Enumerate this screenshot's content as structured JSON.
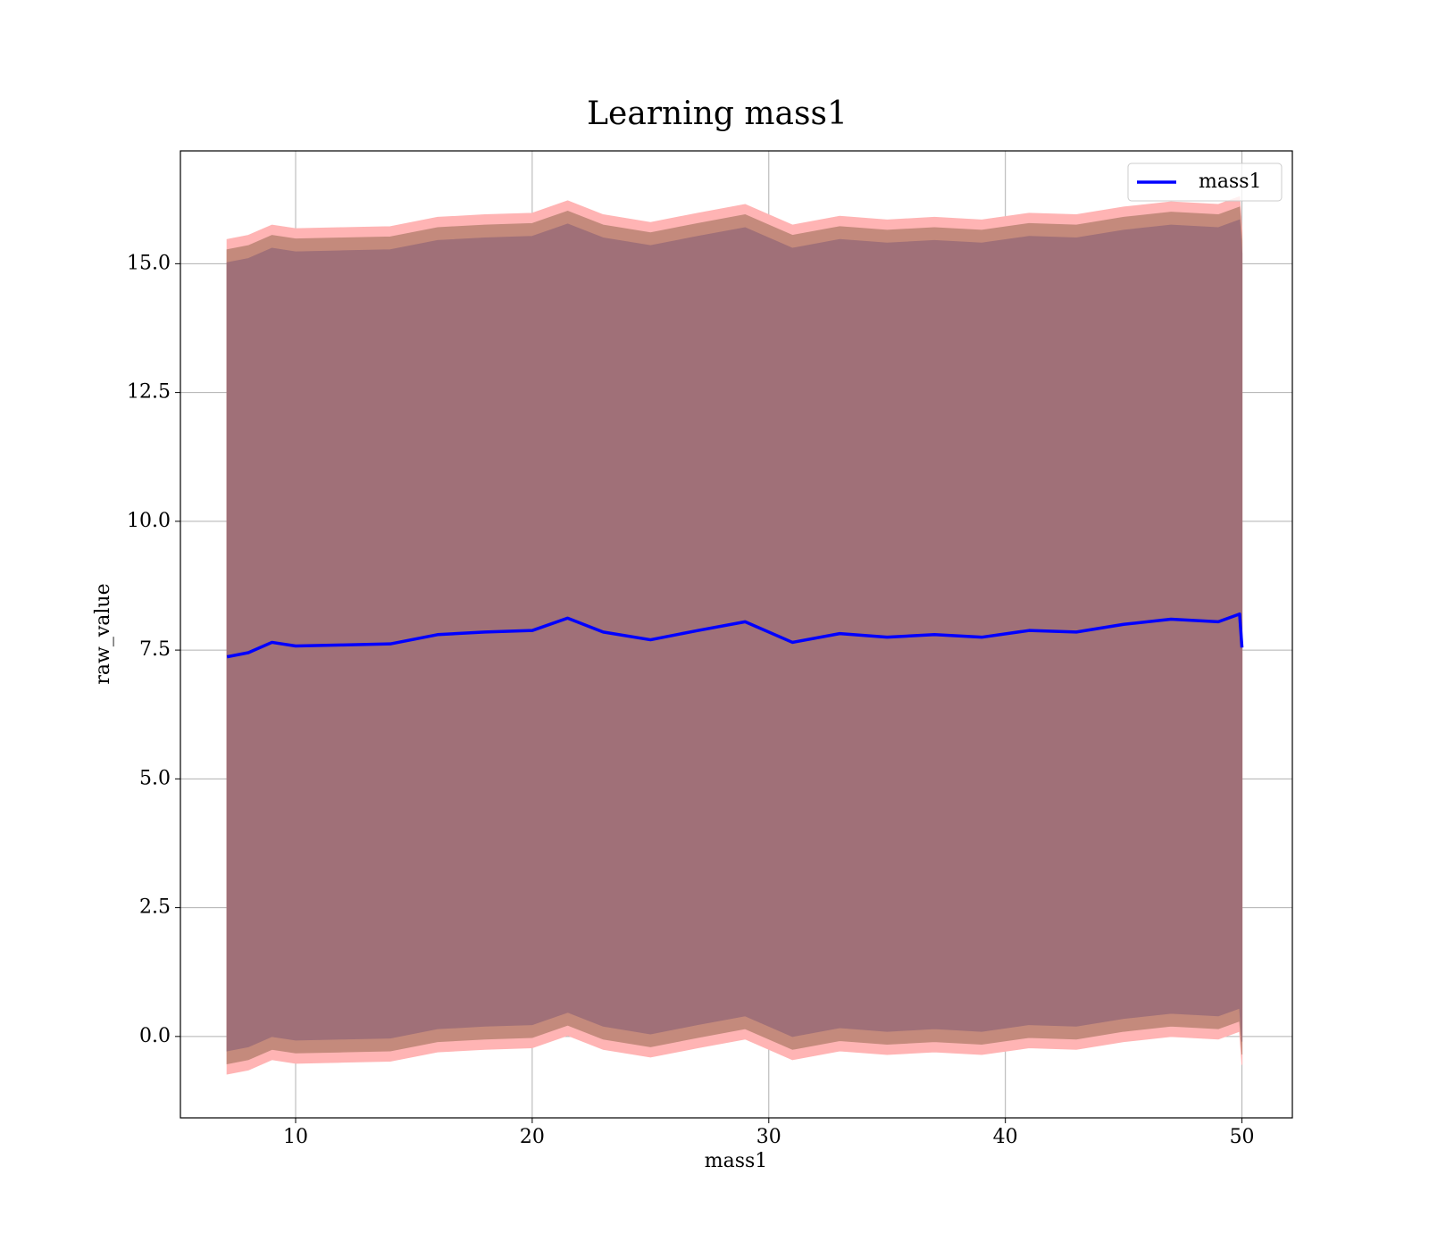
{
  "chart_data": {
    "type": "line",
    "title": "Learning mass1",
    "xlabel": "mass1",
    "ylabel": "raw_value",
    "x": [
      7.1,
      8,
      9,
      10,
      12,
      14,
      16,
      18,
      20,
      21.5,
      23,
      25,
      27,
      29,
      31,
      33,
      35,
      37,
      39,
      41,
      43,
      45,
      47,
      49,
      49.9,
      50
    ],
    "series": [
      {
        "name": "mass1",
        "color": "#0000ff",
        "values": [
          7.37,
          7.45,
          7.65,
          7.58,
          7.6,
          7.62,
          7.8,
          7.85,
          7.88,
          8.12,
          7.85,
          7.7,
          7.88,
          8.05,
          7.65,
          7.82,
          7.75,
          7.8,
          7.75,
          7.88,
          7.85,
          8.0,
          8.1,
          8.05,
          8.2,
          7.55
        ]
      }
    ],
    "bands": [
      {
        "color": "#ffb4b4",
        "lower": [
          -0.73,
          -0.65,
          -0.45,
          -0.52,
          -0.5,
          -0.48,
          -0.3,
          -0.25,
          -0.22,
          0.02,
          -0.25,
          -0.4,
          -0.22,
          -0.05,
          -0.45,
          -0.28,
          -0.35,
          -0.3,
          -0.35,
          -0.22,
          -0.25,
          -0.1,
          0,
          -0.05,
          0.1,
          -0.55
        ],
        "upper": [
          15.47,
          15.55,
          15.75,
          15.68,
          15.7,
          15.72,
          15.9,
          15.95,
          15.98,
          16.22,
          15.95,
          15.8,
          15.98,
          16.15,
          15.75,
          15.92,
          15.85,
          15.9,
          15.85,
          15.98,
          15.95,
          16.1,
          16.2,
          16.15,
          16.3,
          15.65
        ]
      },
      {
        "color": "#c48a7c",
        "lower": [
          -0.53,
          -0.45,
          -0.25,
          -0.32,
          -0.3,
          -0.28,
          -0.1,
          -0.05,
          -0.02,
          0.22,
          -0.05,
          -0.2,
          -0.02,
          0.15,
          -0.25,
          -0.08,
          -0.15,
          -0.1,
          -0.15,
          -0.02,
          -0.05,
          0.1,
          0.2,
          0.15,
          0.3,
          -0.35
        ],
        "upper": [
          15.27,
          15.35,
          15.55,
          15.48,
          15.5,
          15.52,
          15.7,
          15.75,
          15.78,
          16.02,
          15.75,
          15.6,
          15.78,
          15.95,
          15.55,
          15.72,
          15.65,
          15.7,
          15.65,
          15.78,
          15.75,
          15.9,
          16.0,
          15.95,
          16.1,
          15.45
        ]
      },
      {
        "color": "#a07078",
        "lower": [
          -0.28,
          -0.2,
          0,
          -0.07,
          -0.05,
          -0.03,
          0.15,
          0.2,
          0.23,
          0.47,
          0.2,
          0.05,
          0.23,
          0.4,
          0,
          0.17,
          0.1,
          0.15,
          0.1,
          0.23,
          0.2,
          0.35,
          0.45,
          0.4,
          0.55,
          -0.1
        ],
        "upper": [
          15.02,
          15.1,
          15.3,
          15.23,
          15.25,
          15.27,
          15.45,
          15.5,
          15.53,
          15.77,
          15.5,
          15.35,
          15.53,
          15.7,
          15.3,
          15.47,
          15.4,
          15.45,
          15.4,
          15.53,
          15.5,
          15.65,
          15.75,
          15.7,
          15.85,
          15.2
        ]
      }
    ],
    "xlim": [
      5.13,
      52.13
    ],
    "xticks": [
      10,
      20,
      30,
      40,
      50
    ],
    "ylim": [
      -1.58,
      17.19
    ],
    "yticks": [
      {
        "value": 0,
        "label": "0.0"
      },
      2.5,
      {
        "value": 5,
        "label": "5.0"
      },
      7.5,
      {
        "value": 10,
        "label": "10.0"
      },
      12.5,
      {
        "value": 15,
        "label": "15.0"
      }
    ],
    "grid": true,
    "legend": "upper right"
  }
}
